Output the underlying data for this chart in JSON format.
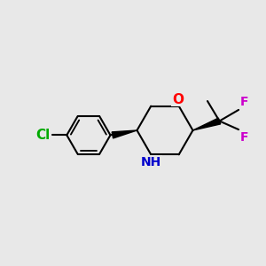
{
  "background_color": "#e8e8e8",
  "bond_width": 1.5,
  "atom_colors": {
    "O": "#ff0000",
    "N": "#0000cc",
    "F": "#cc00cc",
    "Cl": "#00aa00",
    "C": "#000000"
  },
  "figsize": [
    3.0,
    3.0
  ],
  "dpi": 100
}
